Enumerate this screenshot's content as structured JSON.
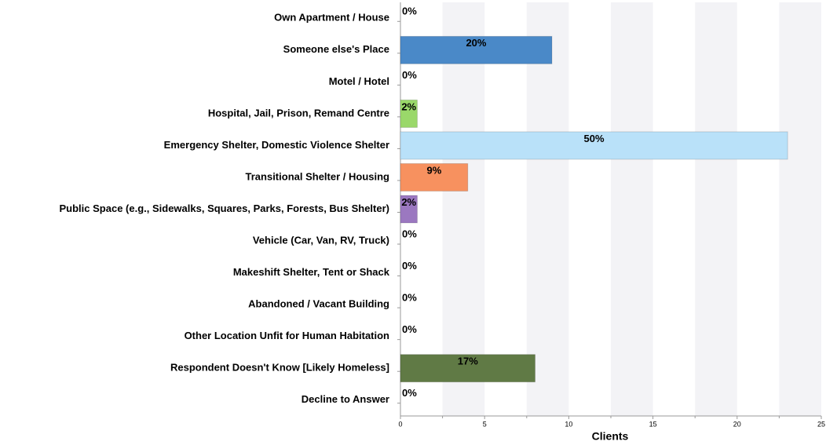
{
  "chart_data": {
    "type": "bar",
    "orientation": "horizontal",
    "categories": [
      "Own Apartment / House",
      "Someone else's Place",
      "Motel / Hotel",
      "Hospital, Jail, Prison, Remand Centre",
      "Emergency Shelter, Domestic Violence Shelter",
      "Transitional Shelter / Housing",
      "Public Space (e.g., Sidewalks, Squares, Parks, Forests, Bus Shelter)",
      "Vehicle (Car, Van, RV, Truck)",
      "Makeshift Shelter, Tent or Shack",
      "Abandoned / Vacant Building",
      "Other Location Unfit for Human Habitation",
      "Respondent Doesn't Know [Likely Homeless]",
      "Decline to Answer"
    ],
    "values": [
      0,
      9,
      0,
      1,
      23,
      4,
      1,
      0,
      0,
      0,
      0,
      8,
      0
    ],
    "value_labels": [
      "0%",
      "20%",
      "0%",
      "2%",
      "50%",
      "9%",
      "2%",
      "0%",
      "0%",
      "0%",
      "0%",
      "17%",
      "0%"
    ],
    "colors": [
      null,
      "#4a89c8",
      null,
      "#9ad86a",
      "#b9e1f9",
      "#f7915f",
      "#9b78c0",
      null,
      null,
      null,
      null,
      "#607a45",
      null
    ],
    "x_label": "Clients",
    "xlim": [
      0,
      25
    ],
    "xticks": [
      0,
      5,
      10,
      15,
      20,
      25
    ],
    "banded_background": true
  }
}
